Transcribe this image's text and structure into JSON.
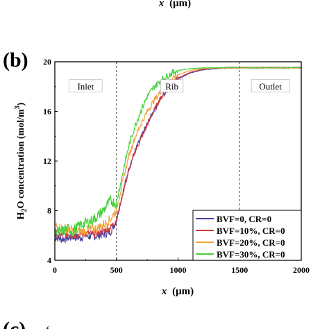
{
  "top_partial": {
    "xlabel_italic": "x",
    "xlabel_unit": "(μm)"
  },
  "panel_b_label": "(b)",
  "panel_c_label": "(c)",
  "panel_c_fragment": "f",
  "chart_data": {
    "type": "line",
    "xlabel_italic": "x",
    "xlabel_unit": "(μm)",
    "ylabel": "H2O concentration (mol/m3)",
    "xlim": [
      0,
      2000
    ],
    "ylim": [
      4,
      20
    ],
    "xticks": [
      0,
      500,
      1000,
      1500,
      2000
    ],
    "yticks": [
      4,
      8,
      12,
      16,
      20
    ],
    "vlines": [
      500,
      1500
    ],
    "regions": [
      {
        "label": "Inlet",
        "x": 250,
        "y": 18.0
      },
      {
        "label": "Rib",
        "x": 950,
        "y": 18.0
      },
      {
        "label": "Outlet",
        "x": 1750,
        "y": 18.0
      }
    ],
    "legend_position": "bottom-right",
    "series": [
      {
        "name": "BVF=0,   CR=0",
        "color": "#4a3fa0",
        "x": [
          0,
          50,
          100,
          150,
          200,
          250,
          300,
          350,
          400,
          450,
          500,
          550,
          600,
          650,
          700,
          750,
          800,
          850,
          900,
          950,
          1000,
          1100,
          1200,
          1300,
          1400,
          1500,
          1600,
          1700,
          1800,
          1900,
          2000
        ],
        "y": [
          5.9,
          5.7,
          5.8,
          5.9,
          5.8,
          6.0,
          5.9,
          6.0,
          6.1,
          6.3,
          7.2,
          9.4,
          11.4,
          12.8,
          13.9,
          15.0,
          16.0,
          16.9,
          17.6,
          18.1,
          18.6,
          19.1,
          19.35,
          19.45,
          19.5,
          19.5,
          19.5,
          19.5,
          19.5,
          19.5,
          19.5
        ]
      },
      {
        "name": "BVF=10%, CR=0",
        "color": "#d0383a",
        "x": [
          0,
          50,
          100,
          150,
          200,
          250,
          300,
          350,
          400,
          450,
          500,
          550,
          600,
          650,
          700,
          750,
          800,
          850,
          900,
          950,
          1000,
          1100,
          1200,
          1300,
          1400,
          1500,
          1600,
          1700,
          1800,
          1900,
          2000
        ],
        "y": [
          6.2,
          6.0,
          6.1,
          6.0,
          6.1,
          6.2,
          6.1,
          6.2,
          6.4,
          6.6,
          7.3,
          9.3,
          11.2,
          12.7,
          13.8,
          14.9,
          16.0,
          16.9,
          17.6,
          18.2,
          18.7,
          19.15,
          19.4,
          19.5,
          19.55,
          19.55,
          19.55,
          19.55,
          19.55,
          19.55,
          19.55
        ]
      },
      {
        "name": "BVF=20%, CR=0",
        "color": "#f2a23a",
        "x": [
          0,
          50,
          100,
          150,
          200,
          250,
          300,
          350,
          400,
          450,
          500,
          550,
          600,
          650,
          700,
          750,
          800,
          850,
          900,
          950,
          1000,
          1100,
          1200,
          1300,
          1400,
          1500,
          1600,
          1700,
          1800,
          1900,
          2000
        ],
        "y": [
          6.8,
          6.6,
          6.5,
          6.4,
          6.3,
          6.4,
          6.5,
          6.6,
          6.9,
          7.3,
          8.1,
          10.3,
          12.4,
          13.9,
          15.0,
          16.0,
          16.8,
          17.5,
          18.1,
          18.6,
          18.95,
          19.3,
          19.45,
          19.5,
          19.5,
          19.5,
          19.5,
          19.5,
          19.5,
          19.5,
          19.5
        ]
      },
      {
        "name": "BVF=30%, CR=0",
        "color": "#45d13a",
        "x": [
          0,
          50,
          100,
          150,
          200,
          250,
          300,
          350,
          400,
          450,
          500,
          550,
          600,
          650,
          700,
          750,
          800,
          850,
          900,
          950,
          1000,
          1100,
          1200,
          1300,
          1400,
          1500,
          1600,
          1700,
          1800,
          1900,
          2000
        ],
        "y": [
          6.3,
          6.3,
          6.5,
          6.4,
          6.8,
          7.0,
          7.2,
          7.6,
          8.1,
          8.8,
          8.6,
          11.0,
          13.2,
          14.8,
          16.1,
          17.2,
          17.9,
          18.4,
          18.8,
          19.1,
          19.3,
          19.45,
          19.5,
          19.52,
          19.52,
          19.52,
          19.52,
          19.52,
          19.52,
          19.52,
          19.52
        ]
      }
    ]
  }
}
